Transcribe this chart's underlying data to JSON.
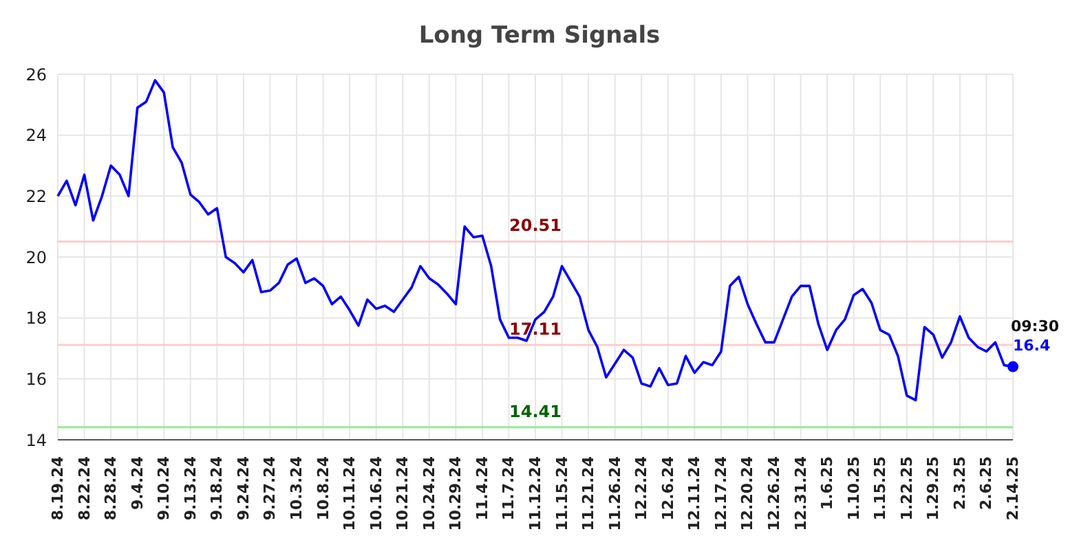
{
  "chart_data": {
    "type": "line",
    "title": "Long Term Signals",
    "categories": [
      "8.19.24",
      null,
      null,
      "8.22.24",
      null,
      null,
      "8.28.24",
      null,
      null,
      "9.4.24",
      null,
      null,
      "9.10.24",
      null,
      null,
      "9.13.24",
      null,
      null,
      "9.18.24",
      null,
      null,
      "9.24.24",
      null,
      null,
      "9.27.24",
      null,
      null,
      "10.3.24",
      null,
      null,
      "10.8.24",
      null,
      null,
      "10.11.24",
      null,
      null,
      "10.16.24",
      null,
      null,
      "10.21.24",
      null,
      null,
      "10.24.24",
      null,
      null,
      "10.29.24",
      null,
      null,
      "11.4.24",
      null,
      null,
      "11.7.24",
      null,
      null,
      "11.12.24",
      null,
      null,
      "11.15.24",
      null,
      null,
      "11.21.24",
      null,
      null,
      "11.26.24",
      null,
      null,
      "12.2.24",
      null,
      null,
      "12.6.24",
      null,
      null,
      "12.11.24",
      null,
      null,
      "12.17.24",
      null,
      null,
      "12.20.24",
      null,
      null,
      "12.26.24",
      null,
      null,
      "12.31.24",
      null,
      null,
      "1.6.25",
      null,
      null,
      "1.10.25",
      null,
      null,
      "1.15.25",
      null,
      null,
      "1.22.25",
      null,
      null,
      "1.29.25",
      null,
      null,
      "2.3.25",
      null,
      null,
      "2.6.25",
      null,
      null,
      "2.14.25"
    ],
    "series": [
      {
        "color": "#0000ff",
        "values": [
          22.0,
          22.5,
          21.7,
          22.7,
          21.2,
          22.0,
          23.0,
          22.7,
          22.0,
          24.9,
          25.1,
          25.8,
          25.4,
          23.6,
          23.1,
          22.05,
          21.8,
          21.4,
          21.6,
          20.0,
          19.8,
          19.5,
          19.9,
          18.85,
          18.9,
          19.15,
          19.75,
          19.95,
          19.15,
          19.3,
          19.05,
          18.45,
          18.7,
          18.25,
          17.75,
          18.6,
          18.3,
          18.4,
          18.2,
          18.6,
          19.0,
          19.7,
          19.3,
          19.1,
          18.8,
          18.45,
          21.0,
          20.65,
          20.7,
          19.7,
          17.95,
          17.35,
          17.35,
          17.25,
          17.95,
          18.2,
          18.7,
          19.7,
          19.2,
          18.7,
          17.6,
          17.05,
          16.05,
          16.5,
          16.95,
          16.7,
          15.85,
          15.75,
          16.35,
          15.8,
          15.85,
          16.75,
          16.2,
          16.55,
          16.45,
          16.9,
          19.05,
          19.35,
          18.45,
          17.8,
          17.2,
          17.2,
          17.95,
          18.7,
          19.05,
          19.05,
          17.8,
          16.95,
          17.6,
          17.95,
          18.75,
          18.95,
          18.5,
          17.6,
          17.45,
          16.75,
          15.45,
          15.3,
          17.7,
          17.45,
          16.7,
          17.2,
          18.05,
          17.35,
          17.05,
          16.9,
          17.2,
          16.45,
          16.4
        ],
        "value_labels": [
          null,
          null,
          null,
          null,
          null,
          null,
          null,
          null,
          null,
          null,
          null,
          null,
          null,
          null,
          null,
          null,
          null,
          null,
          null,
          null,
          null,
          null,
          null,
          null,
          null,
          null,
          null,
          null,
          null,
          null,
          null,
          null,
          null,
          null,
          null,
          null,
          null,
          null,
          null,
          null,
          null,
          null,
          null,
          null,
          null,
          null,
          null,
          null,
          null,
          null,
          null,
          null,
          null,
          null,
          null,
          null,
          null,
          null,
          null,
          null,
          null,
          null,
          null,
          null,
          null,
          null,
          null,
          null,
          null,
          null,
          null,
          null,
          null,
          null,
          null,
          null,
          null,
          null,
          null,
          null,
          null,
          null,
          null,
          null,
          null,
          null,
          null,
          null,
          null,
          null,
          null,
          null,
          null,
          null,
          null,
          null,
          null,
          null,
          null,
          null,
          null,
          null,
          null,
          null,
          null,
          null,
          null,
          null,
          "16.4"
        ]
      }
    ],
    "ylim": [
      14,
      26
    ],
    "yticks": [
      14,
      16,
      18,
      20,
      22,
      24,
      26
    ],
    "grid": true,
    "legend": false,
    "marker": "none",
    "line_style": "solid",
    "ref_lines": [
      {
        "axis": "y",
        "value": 20.51,
        "label": "20.51",
        "color": "#ffcccc"
      },
      {
        "axis": "y",
        "value": 17.11,
        "label": "17.11",
        "color": "#ffcccc"
      },
      {
        "axis": "y",
        "value": 14.41,
        "label": "14.41",
        "color": "#90ee90"
      }
    ],
    "annotations": [
      {
        "text": "09:30",
        "x": "2.14.25",
        "y": 16.4
      }
    ]
  }
}
